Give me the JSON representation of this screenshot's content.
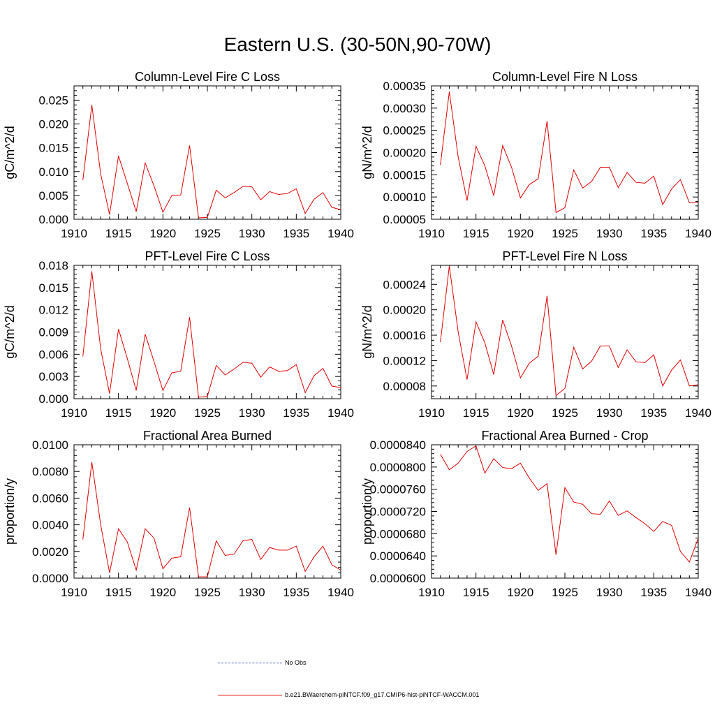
{
  "title": "Eastern U.S. (30-50N,90-70W)",
  "legend": {
    "obs_label": "No Obs",
    "model_label": "b.e21.BWaerchem-piNTCF.f09_g17.CMIP6-hist-piNTCF-WACCM.001",
    "obs_color": "#4455bb",
    "model_color": "#e00000"
  },
  "chart_data": [
    {
      "type": "line",
      "title": "Column-Level Fire C Loss",
      "ylabel": "gC/m^2/d",
      "xlim": [
        1910,
        1940
      ],
      "ylim": [
        0,
        0.028
      ],
      "xticks": [
        "1910",
        "1915",
        "1920",
        "1925",
        "1930",
        "1935",
        "1940"
      ],
      "yticks": [
        "0.000",
        "0.005",
        "0.010",
        "0.015",
        "0.020",
        "0.025"
      ],
      "x": [
        1911,
        1912,
        1913,
        1914,
        1915,
        1916,
        1917,
        1918,
        1919,
        1920,
        1921,
        1922,
        1923,
        1924,
        1925,
        1926,
        1927,
        1928,
        1929,
        1930,
        1931,
        1932,
        1933,
        1934,
        1935,
        1936,
        1937,
        1938,
        1939,
        1940
      ],
      "values": [
        0.0082,
        0.024,
        0.0095,
        0.001,
        0.0133,
        0.0075,
        0.0016,
        0.0118,
        0.007,
        0.0015,
        0.005,
        0.0051,
        0.0155,
        0.0003,
        0.0004,
        0.0061,
        0.0045,
        0.0056,
        0.0069,
        0.0068,
        0.0041,
        0.0058,
        0.0052,
        0.0054,
        0.0064,
        0.0012,
        0.0042,
        0.0056,
        0.0025,
        0.002
      ]
    },
    {
      "type": "line",
      "title": "Column-Level Fire N Loss",
      "ylabel": "gN/m^2/d",
      "xlim": [
        1910,
        1940
      ],
      "ylim": [
        5e-05,
        0.00035
      ],
      "xticks": [
        "1910",
        "1915",
        "1920",
        "1925",
        "1930",
        "1935",
        "1940"
      ],
      "yticks": [
        "0.00005",
        "0.00010",
        "0.00015",
        "0.00020",
        "0.00025",
        "0.00030",
        "0.00035"
      ],
      "x": [
        1911,
        1912,
        1913,
        1914,
        1915,
        1916,
        1917,
        1918,
        1919,
        1920,
        1921,
        1922,
        1923,
        1924,
        1925,
        1926,
        1927,
        1928,
        1929,
        1930,
        1931,
        1932,
        1933,
        1934,
        1935,
        1936,
        1937,
        1938,
        1939,
        1940
      ],
      "values": [
        0.000172,
        0.000337,
        0.00019,
        9.2e-05,
        0.000214,
        0.00017,
        0.000103,
        0.000216,
        0.000167,
        9.8e-05,
        0.000128,
        0.000141,
        0.000271,
        6.5e-05,
        7.6e-05,
        0.000161,
        0.00012,
        0.000135,
        0.000167,
        0.000167,
        0.000121,
        0.000155,
        0.000133,
        0.000131,
        0.000147,
        8.3e-05,
        0.000118,
        0.000139,
        8.7e-05,
        8.8e-05
      ]
    },
    {
      "type": "line",
      "title": "PFT-Level Fire C Loss",
      "ylabel": "gC/m^2/d",
      "xlim": [
        1910,
        1940
      ],
      "ylim": [
        0,
        0.018
      ],
      "xticks": [
        "1910",
        "1915",
        "1920",
        "1925",
        "1930",
        "1935",
        "1940"
      ],
      "yticks": [
        "0.000",
        "0.003",
        "0.006",
        "0.009",
        "0.012",
        "0.015",
        "0.018"
      ],
      "x": [
        1911,
        1912,
        1913,
        1914,
        1915,
        1916,
        1917,
        1918,
        1919,
        1920,
        1921,
        1922,
        1923,
        1924,
        1925,
        1926,
        1927,
        1928,
        1929,
        1930,
        1931,
        1932,
        1933,
        1934,
        1935,
        1936,
        1937,
        1938,
        1939,
        1940
      ],
      "values": [
        0.0057,
        0.0172,
        0.0067,
        0.0007,
        0.0094,
        0.0054,
        0.0011,
        0.0087,
        0.005,
        0.0011,
        0.0035,
        0.0037,
        0.011,
        0.0002,
        0.0003,
        0.0045,
        0.0032,
        0.004,
        0.0049,
        0.0048,
        0.0029,
        0.0043,
        0.0037,
        0.0038,
        0.0046,
        0.0008,
        0.0031,
        0.0041,
        0.0017,
        0.0015
      ]
    },
    {
      "type": "line",
      "title": "PFT-Level Fire N Loss",
      "ylabel": "gN/m^2/d",
      "xlim": [
        1910,
        1940
      ],
      "ylim": [
        6e-05,
        0.00027
      ],
      "xticks": [
        "1910",
        "1915",
        "1920",
        "1925",
        "1930",
        "1935",
        "1940"
      ],
      "yticks": [
        "0.00008",
        "0.00012",
        "0.00016",
        "0.00020",
        "0.00024"
      ],
      "x": [
        1911,
        1912,
        1913,
        1914,
        1915,
        1916,
        1917,
        1918,
        1919,
        1920,
        1921,
        1922,
        1923,
        1924,
        1925,
        1926,
        1927,
        1928,
        1929,
        1930,
        1931,
        1932,
        1933,
        1934,
        1935,
        1936,
        1937,
        1938,
        1939,
        1940
      ],
      "values": [
        0.000149,
        0.000269,
        0.000165,
        9e-05,
        0.000181,
        0.000148,
        9.8e-05,
        0.000184,
        0.000143,
        9.3e-05,
        0.000116,
        0.000127,
        0.000222,
        6.5e-05,
        7.6e-05,
        0.000141,
        0.000107,
        0.000119,
        0.000143,
        0.000143,
        0.000109,
        0.000137,
        0.000118,
        0.000117,
        0.000129,
        8e-05,
        0.000105,
        0.000121,
        8e-05,
        8.2e-05
      ]
    },
    {
      "type": "line",
      "title": "Fractional Area Burned",
      "ylabel": "proportion/y",
      "xlim": [
        1910,
        1940
      ],
      "ylim": [
        0,
        0.01
      ],
      "xticks": [
        "1910",
        "1915",
        "1920",
        "1925",
        "1930",
        "1935",
        "1940"
      ],
      "yticks": [
        "0.0000",
        "0.0020",
        "0.0040",
        "0.0060",
        "0.0080",
        "0.0100"
      ],
      "x": [
        1911,
        1912,
        1913,
        1914,
        1915,
        1916,
        1917,
        1918,
        1919,
        1920,
        1921,
        1922,
        1923,
        1924,
        1925,
        1926,
        1927,
        1928,
        1929,
        1930,
        1931,
        1932,
        1933,
        1934,
        1935,
        1936,
        1937,
        1938,
        1939,
        1940
      ],
      "values": [
        0.0029,
        0.0087,
        0.004,
        0.0004,
        0.0037,
        0.0027,
        0.0006,
        0.0037,
        0.003,
        0.0007,
        0.0015,
        0.0016,
        0.0053,
        0.0001,
        0.0001,
        0.0028,
        0.0017,
        0.0018,
        0.0028,
        0.0029,
        0.0014,
        0.0023,
        0.0021,
        0.0021,
        0.0024,
        0.0005,
        0.0016,
        0.0024,
        0.001,
        0.0006
      ]
    },
    {
      "type": "line",
      "title": "Fractional Area Burned - Crop",
      "ylabel": "proportion/y",
      "xlim": [
        1910,
        1940
      ],
      "ylim": [
        6e-05,
        8.4e-05
      ],
      "xticks": [
        "1910",
        "1915",
        "1920",
        "1925",
        "1930",
        "1935",
        "1940"
      ],
      "yticks": [
        "0.0000600",
        "0.0000640",
        "0.0000680",
        "0.0000720",
        "0.0000760",
        "0.0000800",
        "0.0000840"
      ],
      "x": [
        1911,
        1912,
        1913,
        1914,
        1915,
        1916,
        1917,
        1918,
        1919,
        1920,
        1921,
        1922,
        1923,
        1924,
        1925,
        1926,
        1927,
        1928,
        1929,
        1930,
        1931,
        1932,
        1933,
        1934,
        1935,
        1936,
        1937,
        1938,
        1939,
        1940
      ],
      "values": [
        8.23e-05,
        7.95e-05,
        8.07e-05,
        8.28e-05,
        8.38e-05,
        7.89e-05,
        8.15e-05,
        7.99e-05,
        7.97e-05,
        8.07e-05,
        7.8e-05,
        7.58e-05,
        7.7e-05,
        6.42e-05,
        7.63e-05,
        7.37e-05,
        7.33e-05,
        7.16e-05,
        7.15e-05,
        7.39e-05,
        7.13e-05,
        7.21e-05,
        7.09e-05,
        6.98e-05,
        6.84e-05,
        7.02e-05,
        6.95e-05,
        6.48e-05,
        6.29e-05,
        6.72e-05
      ]
    }
  ]
}
